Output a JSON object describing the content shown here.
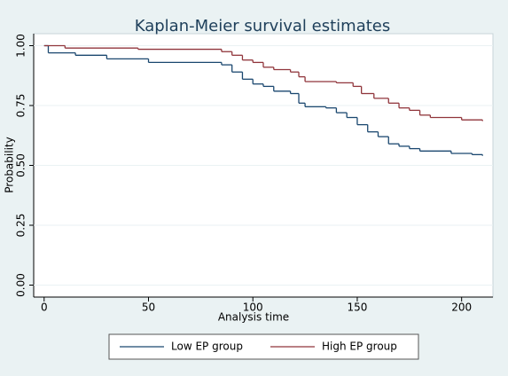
{
  "chart_data": {
    "type": "step",
    "title": "Kaplan-Meier survival estimates",
    "x_label": "Analysis time",
    "y_label": "Probability",
    "xlim": [
      -5,
      215
    ],
    "ylim": [
      -0.05,
      1.05
    ],
    "xticks": [
      0,
      50,
      100,
      150,
      200
    ],
    "yticks": [
      {
        "value": 0,
        "label": "0.00"
      },
      {
        "value": 0.25,
        "label": "0.25"
      },
      {
        "value": 0.5,
        "label": "0.50"
      },
      {
        "value": 0.75,
        "label": "0.75"
      },
      {
        "value": 1,
        "label": "1.00"
      }
    ],
    "grid": true,
    "legend": "bottom",
    "series": [
      {
        "name": "Low EP group",
        "color": "#1a476f",
        "x": [
          0,
          2,
          15,
          30,
          50,
          85,
          90,
          95,
          100,
          105,
          110,
          118,
          122,
          125,
          135,
          140,
          145,
          150,
          155,
          160,
          165,
          170,
          175,
          180,
          195,
          205,
          210
        ],
        "values": [
          1,
          0.97,
          0.96,
          0.945,
          0.93,
          0.92,
          0.89,
          0.86,
          0.84,
          0.83,
          0.81,
          0.8,
          0.76,
          0.745,
          0.74,
          0.72,
          0.7,
          0.67,
          0.64,
          0.62,
          0.59,
          0.58,
          0.57,
          0.56,
          0.55,
          0.545,
          0.54
        ]
      },
      {
        "name": "High EP group",
        "color": "#90353b",
        "x": [
          0,
          10,
          45,
          85,
          90,
          95,
          100,
          105,
          110,
          118,
          122,
          125,
          140,
          148,
          152,
          158,
          165,
          170,
          175,
          180,
          185,
          200,
          210
        ],
        "values": [
          1,
          0.99,
          0.985,
          0.975,
          0.96,
          0.94,
          0.93,
          0.91,
          0.9,
          0.89,
          0.87,
          0.85,
          0.845,
          0.83,
          0.8,
          0.78,
          0.76,
          0.74,
          0.73,
          0.71,
          0.7,
          0.69,
          0.685
        ]
      }
    ]
  }
}
